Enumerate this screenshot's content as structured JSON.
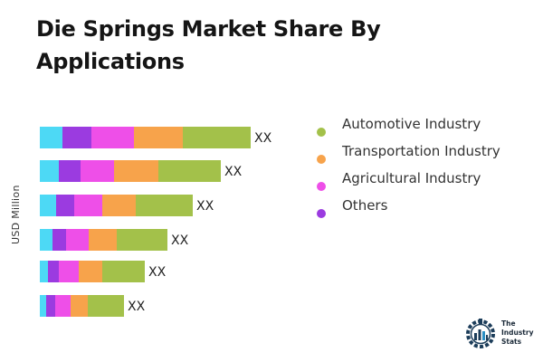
{
  "title": "Die Springs Market Share By Applications",
  "chart_data": {
    "type": "bar",
    "orientation": "horizontal",
    "stacked": true,
    "ylabel": "USD Million",
    "xlabel": "",
    "categories": [
      "",
      "",
      "",
      "",
      "",
      ""
    ],
    "data_labels": [
      "XX",
      "XX",
      "XX",
      "XX",
      "XX",
      "XX"
    ],
    "series": [
      {
        "name": "",
        "color": "#4dd9f5",
        "values": [
          25,
          21,
          18,
          14,
          9,
          7
        ]
      },
      {
        "name": "Others",
        "color": "#9b3be0",
        "values": [
          32,
          24,
          20,
          15,
          12,
          10
        ]
      },
      {
        "name": "Agricultural Industry",
        "color": "#ee4fe8",
        "values": [
          47,
          37,
          31,
          25,
          22,
          17
        ]
      },
      {
        "name": "Transportation Industry",
        "color": "#f7a34b",
        "values": [
          54,
          49,
          37,
          31,
          26,
          19
        ]
      },
      {
        "name": "Automotive Industry",
        "color": "#a3c14a",
        "values": [
          75,
          69,
          63,
          56,
          47,
          40
        ]
      }
    ],
    "legend": {
      "position": "right",
      "items": [
        {
          "label": "Automotive Industry",
          "color": "#a3c14a"
        },
        {
          "label": "Transportation Industry",
          "color": "#f7a34b"
        },
        {
          "label": "Agricultural Industry",
          "color": "#ee4fe8"
        },
        {
          "label": "Others",
          "color": "#9b3be0"
        }
      ]
    },
    "grid": false
  },
  "logo": {
    "line1": "The",
    "line2": "Industry",
    "line3": "Stats"
  }
}
